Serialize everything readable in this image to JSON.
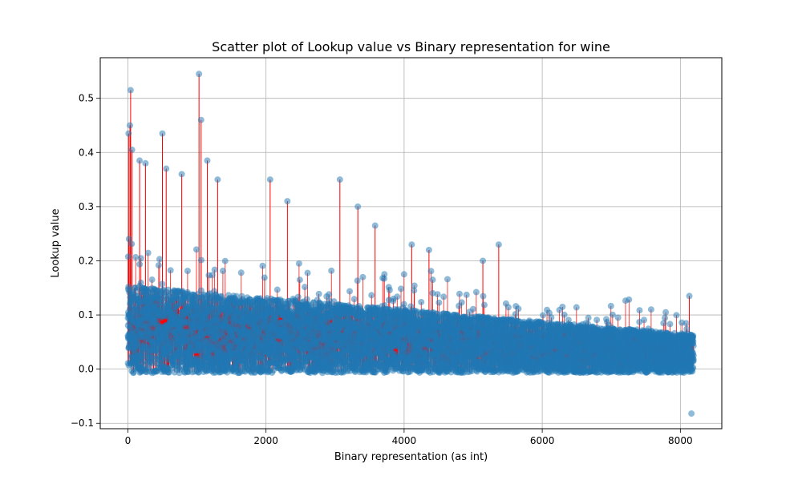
{
  "chart_data": {
    "type": "scatter",
    "title": "Scatter plot of Lookup value vs Binary representation for wine",
    "xlabel": "Binary representation (as int)",
    "ylabel": "Lookup value",
    "xlim": [
      -400,
      8600
    ],
    "ylim": [
      -0.11,
      0.575
    ],
    "xticks": [
      0,
      2000,
      4000,
      6000,
      8000
    ],
    "xtick_labels": [
      "0",
      "2000",
      "4000",
      "6000",
      "8000"
    ],
    "yticks": [
      -0.1,
      0.0,
      0.1,
      0.2,
      0.3,
      0.4,
      0.5
    ],
    "ytick_labels": [
      "−0.1",
      "0.0",
      "0.1",
      "0.2",
      "0.3",
      "0.4",
      "0.5"
    ],
    "grid": true,
    "x_range": [
      0,
      8191
    ],
    "n_points": 8192,
    "marker_color": "#1f77b4",
    "marker_alpha": 0.5,
    "stem_color": "#ff0000",
    "highlighted_peaks": [
      {
        "x": 40,
        "y": 0.515
      },
      {
        "x": 30,
        "y": 0.45
      },
      {
        "x": 10,
        "y": 0.435
      },
      {
        "x": 60,
        "y": 0.405
      },
      {
        "x": 500,
        "y": 0.435
      },
      {
        "x": 1030,
        "y": 0.545
      },
      {
        "x": 1060,
        "y": 0.46
      },
      {
        "x": 1150,
        "y": 0.385
      },
      {
        "x": 1300,
        "y": 0.35
      },
      {
        "x": 170,
        "y": 0.385
      },
      {
        "x": 255,
        "y": 0.38
      },
      {
        "x": 555,
        "y": 0.37
      },
      {
        "x": 780,
        "y": 0.36
      },
      {
        "x": 2060,
        "y": 0.35
      },
      {
        "x": 2310,
        "y": 0.31
      },
      {
        "x": 3070,
        "y": 0.35
      },
      {
        "x": 3330,
        "y": 0.3
      },
      {
        "x": 3580,
        "y": 0.265
      },
      {
        "x": 4110,
        "y": 0.23
      },
      {
        "x": 4360,
        "y": 0.22
      },
      {
        "x": 5370,
        "y": 0.23
      },
      {
        "x": 5140,
        "y": 0.2
      },
      {
        "x": 8130,
        "y": 0.135
      }
    ],
    "minimum": {
      "x": 8160,
      "y": -0.082
    }
  }
}
